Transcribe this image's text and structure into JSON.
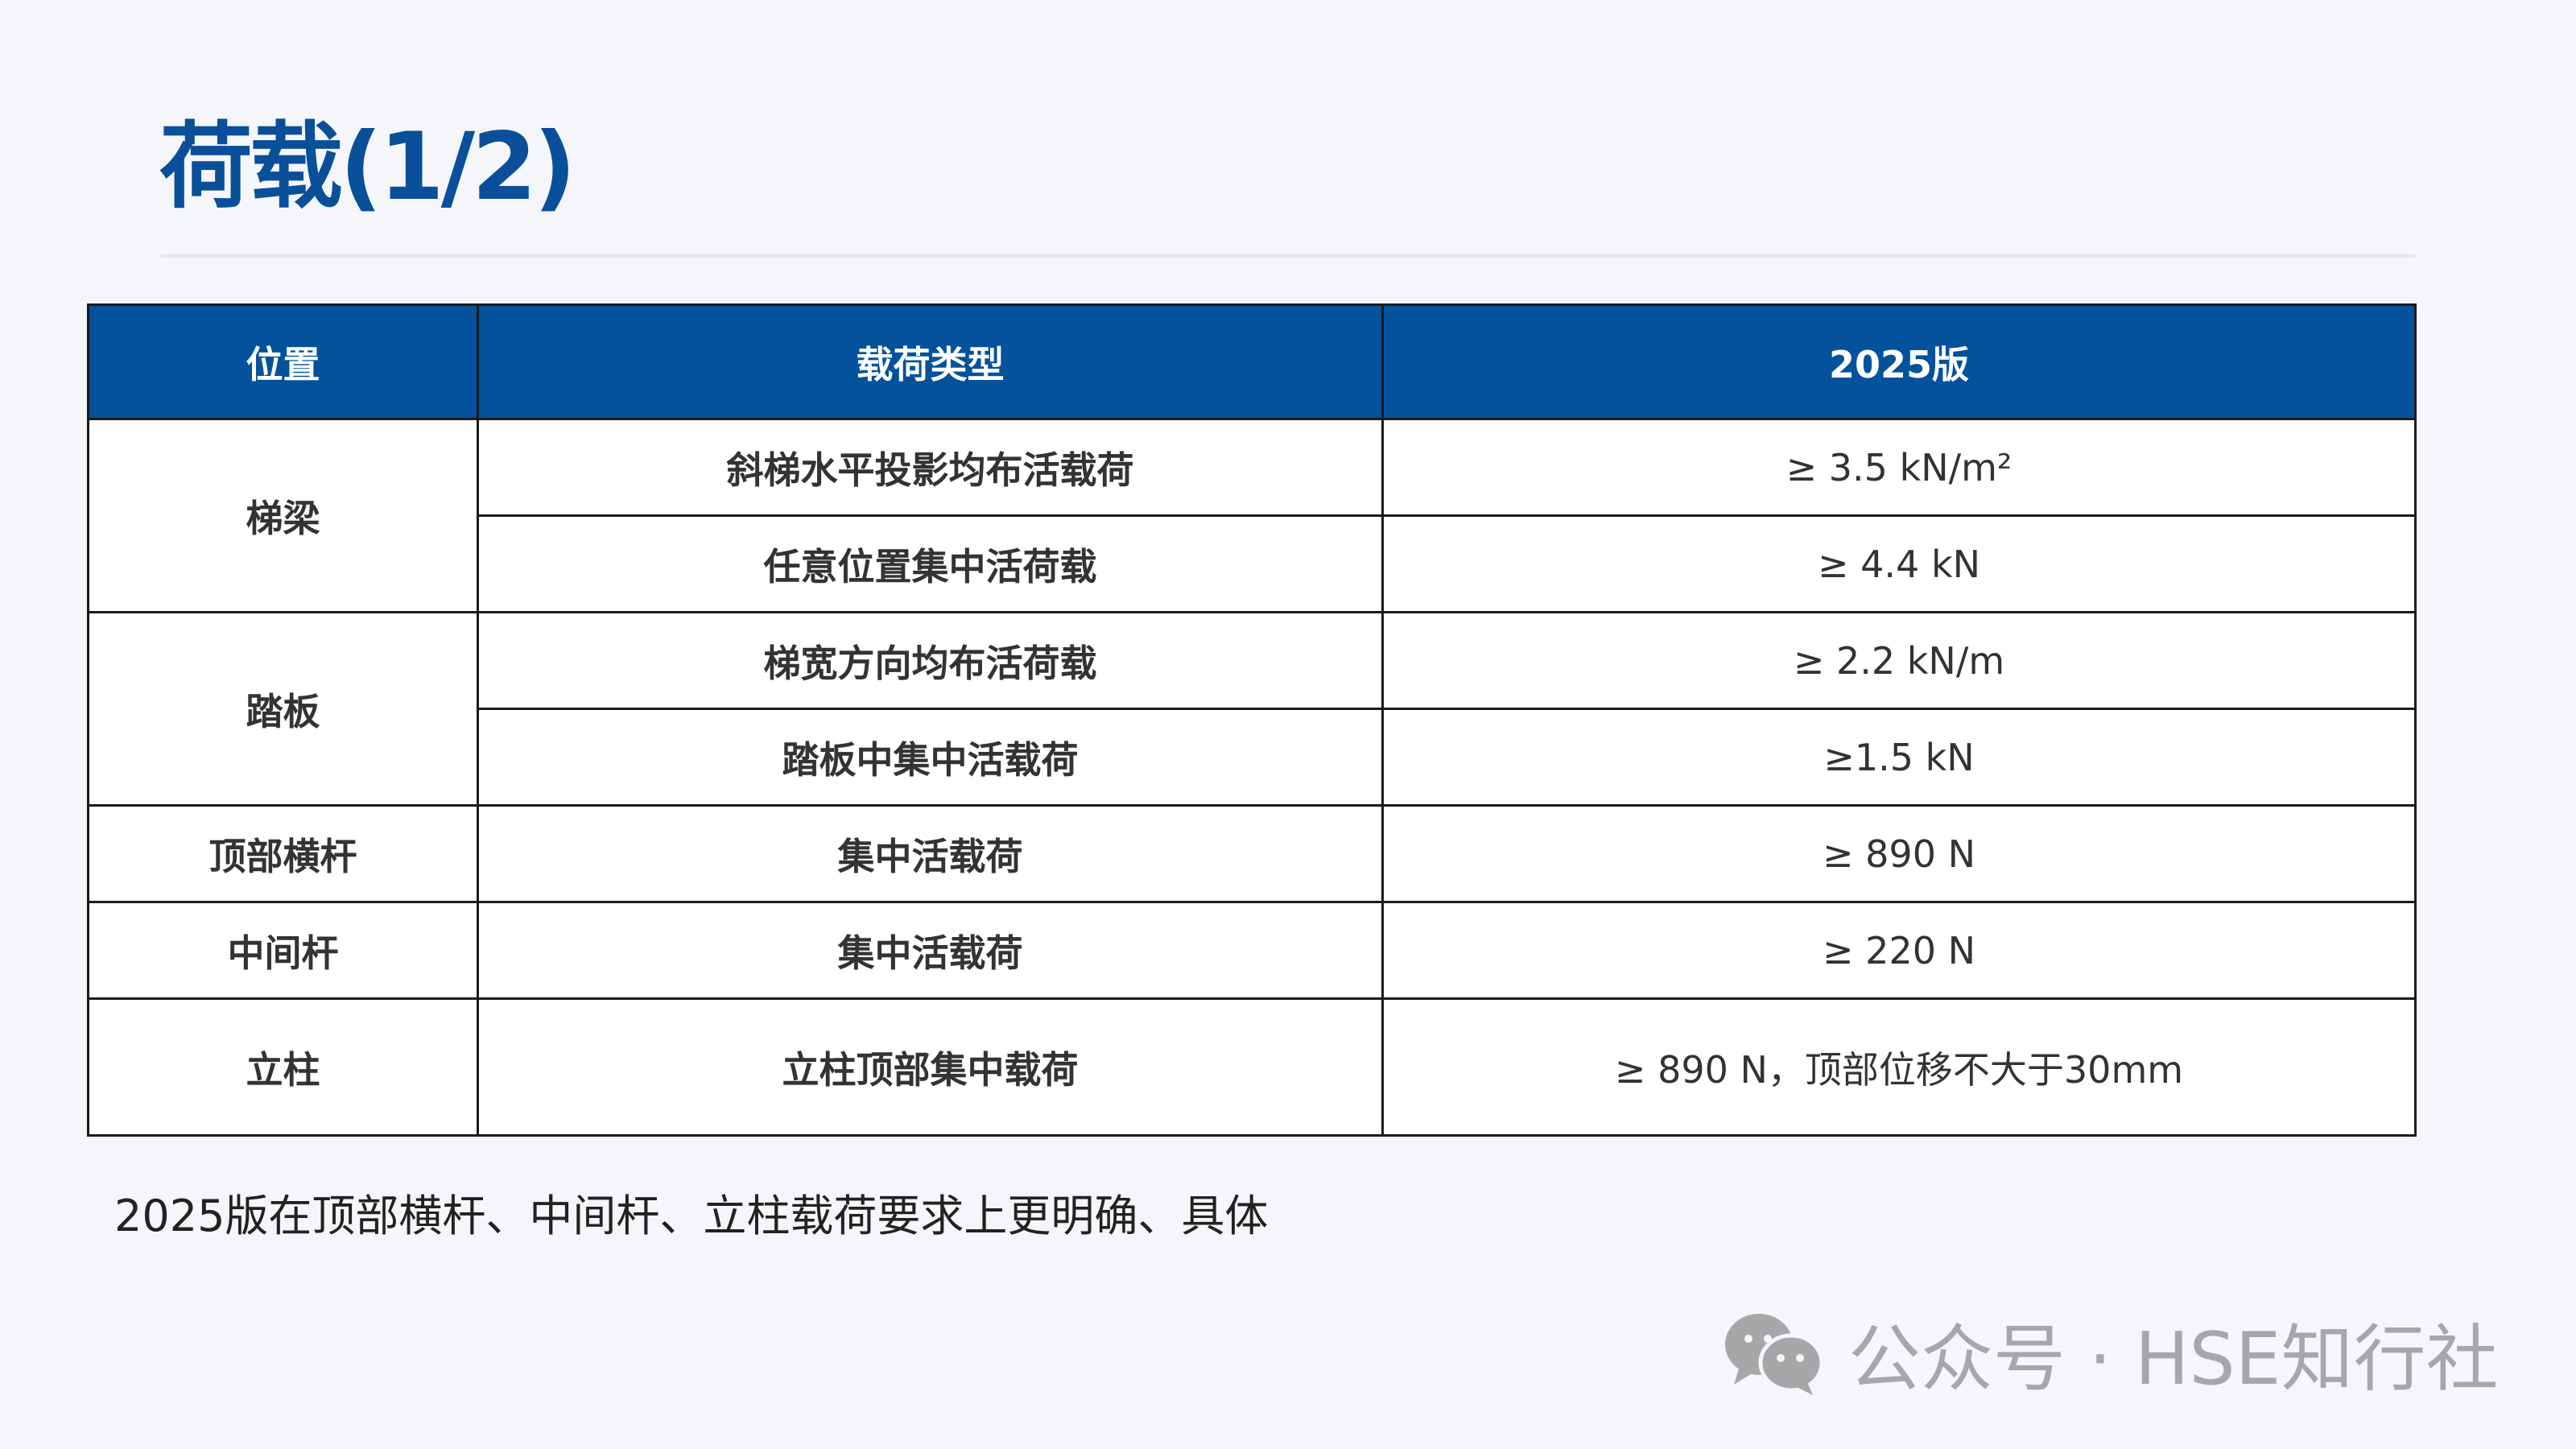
{
  "title": "荷载(1/2)",
  "table": {
    "headers": [
      "位置",
      "载荷类型",
      "2025版"
    ],
    "rows": [
      {
        "position": "梯梁",
        "type": "斜梯水平投影均布活载荷",
        "value": "≥ 3.5 kN/m²"
      },
      {
        "type": "任意位置集中活荷载",
        "value": "≥ 4.4 kN"
      },
      {
        "position": "踏板",
        "type": "梯宽方向均布活荷载",
        "value": "≥ 2.2 kN/m"
      },
      {
        "type": "踏板中集中活载荷",
        "value": "≥1.5 kN"
      },
      {
        "position": "顶部横杆",
        "type": "集中活载荷",
        "value": "≥ 890 N"
      },
      {
        "position": "中间杆",
        "type": "集中活载荷",
        "value": "≥ 220 N"
      },
      {
        "position": "立柱",
        "type": "立柱顶部集中载荷",
        "value": "≥ 890 N，顶部位移不大于30mm"
      }
    ]
  },
  "note": "2025版在顶部横杆、中间杆、立柱载荷要求上更明确、具体",
  "watermark": {
    "icon": "wechat-icon",
    "text": "公众号 · HSE知行社"
  },
  "colors": {
    "header": "#04529c",
    "title": "#0a4f99"
  }
}
